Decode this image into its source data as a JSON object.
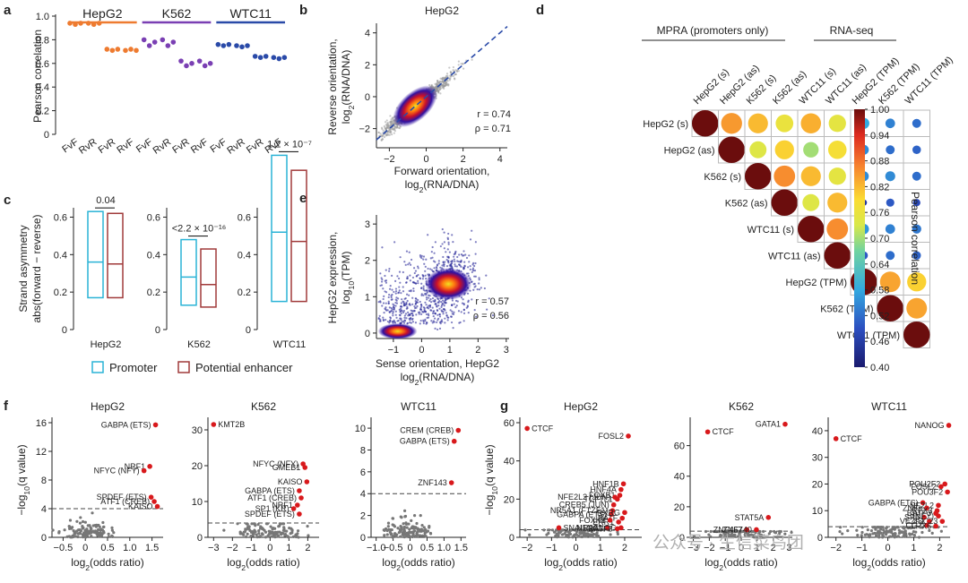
{
  "chart_data": [
    {
      "panel": "a",
      "type": "scatter",
      "ylabel": "Pearson correlation",
      "ylim": [
        0,
        1.0
      ],
      "yticks": [
        "0",
        "0.2",
        "0.4",
        "0.6",
        "0.8",
        "1.0"
      ],
      "xticks": [
        "FvF",
        "RvR",
        "FvR",
        "RvF",
        "FvF",
        "RvR",
        "FvR",
        "RvF",
        "FvF",
        "RvR",
        "FvR",
        "RvF"
      ],
      "groups": [
        {
          "name": "HepG2",
          "color": "#ee7b30",
          "values": [
            [
              0.94,
              0.93,
              0.94
            ],
            [
              0.94,
              0.93,
              0.94
            ],
            [
              0.72,
              0.71,
              0.72
            ],
            [
              0.71,
              0.72,
              0.71
            ]
          ]
        },
        {
          "name": "K562",
          "color": "#7a3fb3",
          "values": [
            [
              0.8,
              0.75,
              0.78
            ],
            [
              0.8,
              0.75,
              0.78
            ],
            [
              0.62,
              0.58,
              0.6
            ],
            [
              0.62,
              0.58,
              0.6
            ]
          ]
        },
        {
          "name": "WTC11",
          "color": "#2a4aa8",
          "values": [
            [
              0.76,
              0.75,
              0.76
            ],
            [
              0.75,
              0.74,
              0.75
            ],
            [
              0.66,
              0.65,
              0.66
            ],
            [
              0.65,
              0.64,
              0.65
            ]
          ]
        }
      ]
    },
    {
      "panel": "b",
      "type": "scatter",
      "title": "HepG2",
      "xlabel": [
        "Forward orientation,",
        "log2(RNA/DNA)"
      ],
      "ylabel": [
        "Reverse orientation,",
        "log2(RNA/DNA)"
      ],
      "xticks": [
        "−2",
        "0",
        "2",
        "4"
      ],
      "yticks": [
        "−2",
        "0",
        "2",
        "4"
      ],
      "stats": [
        "r = 0.74",
        "ρ = 0.71"
      ]
    },
    {
      "panel": "c",
      "type": "bar",
      "ylabel": [
        "Strand asymmetry",
        "abs(forward − reverse)"
      ],
      "yticks": [
        "0",
        "0.2",
        "0.4",
        "0.6"
      ],
      "legend": [
        "Promoter",
        "Potential enhancer"
      ],
      "colors": {
        "promoter": "#2ab3d6",
        "enhancer": "#a03a3a"
      },
      "groups": [
        {
          "name": "HepG2",
          "pval": "0.04",
          "promoter": [
            0.17,
            0.36,
            0.63
          ],
          "enhancer": [
            0.17,
            0.35,
            0.62
          ]
        },
        {
          "name": "K562",
          "pval": "<2.2 × 10⁻¹⁶",
          "promoter": [
            0.13,
            0.28,
            0.48
          ],
          "enhancer": [
            0.12,
            0.24,
            0.43
          ]
        },
        {
          "name": "WTC11",
          "pval": "1.2 × 10⁻⁷",
          "promoter": [
            0.15,
            0.52,
            0.93
          ],
          "enhancer": [
            0.15,
            0.47,
            0.85
          ]
        }
      ]
    },
    {
      "panel": "d",
      "type": "heatmap",
      "header_mpra": "MPRA (promoters only)",
      "header_rna": "RNA-seq",
      "labels": [
        "HepG2 (s)",
        "HepG2 (as)",
        "K562 (s)",
        "K562 (as)",
        "WTC11 (s)",
        "WTC11 (as)",
        "HepG2 (TPM)",
        "K562 (TPM)",
        "WTC11 (TPM)"
      ],
      "colorbar_label": "Pearson correlation",
      "colorbar_ticks": [
        "1.00",
        "0.94",
        "0.88",
        "0.82",
        "0.76",
        "0.70",
        "0.64",
        "0.58",
        "0.52",
        "0.46",
        "0.40"
      ],
      "matrix": [
        [
          1.0,
          0.85,
          0.82,
          0.76,
          0.83,
          0.75,
          0.58,
          0.54,
          0.52
        ],
        [
          null,
          1.0,
          0.74,
          0.8,
          0.7,
          0.78,
          0.55,
          0.52,
          0.51
        ],
        [
          null,
          null,
          1.0,
          0.86,
          0.82,
          0.75,
          0.55,
          0.55,
          0.52
        ],
        [
          null,
          null,
          null,
          1.0,
          0.74,
          0.82,
          0.45,
          0.5,
          0.48
        ],
        [
          null,
          null,
          null,
          null,
          1.0,
          0.86,
          0.56,
          0.54,
          0.53
        ],
        [
          null,
          null,
          null,
          null,
          null,
          1.0,
          0.5,
          0.52,
          0.51
        ],
        [
          null,
          null,
          null,
          null,
          null,
          null,
          1.0,
          0.84,
          0.8
        ],
        [
          null,
          null,
          null,
          null,
          null,
          null,
          null,
          1.0,
          0.84
        ],
        [
          null,
          null,
          null,
          null,
          null,
          null,
          null,
          null,
          1.0
        ]
      ]
    },
    {
      "panel": "e",
      "type": "scatter",
      "xlabel": [
        "Sense orientation, HepG2",
        "log2(RNA/DNA)"
      ],
      "ylabel": [
        "HepG2 expression,",
        "log10(TPM)"
      ],
      "xticks": [
        "−1",
        "0",
        "1",
        "2",
        "3"
      ],
      "yticks": [
        "0",
        "1",
        "2",
        "3"
      ],
      "stats": [
        "r = 0.57",
        "ρ = 0.56"
      ]
    },
    {
      "panel": "f",
      "type": "scatter",
      "ylabel": "−log10(q value)",
      "xlabel": "log2(odds ratio)",
      "plots": [
        {
          "title": "HepG2",
          "yticks": [
            "0",
            "4",
            "8",
            "12",
            "16"
          ],
          "ymax": 16,
          "xticks": [
            "−0.5",
            "0",
            "0.5",
            "1.0",
            "1.5"
          ],
          "xmin": -0.75,
          "xmax": 1.75,
          "threshold": 4,
          "labels": [
            {
              "text": "GABPA (ETS)",
              "x": 1.58,
              "y": 15.7
            },
            {
              "text": "NRF1",
              "x": 1.45,
              "y": 9.9
            },
            {
              "text": "NFYC (NFY)",
              "x": 1.32,
              "y": 9.3
            },
            {
              "text": "SPDEF (ETS)",
              "x": 1.48,
              "y": 5.6
            },
            {
              "text": "ATF1 (CREB)",
              "x": 1.55,
              "y": 5.0
            },
            {
              "text": "KAISO",
              "x": 1.62,
              "y": 4.3
            }
          ]
        },
        {
          "title": "K562",
          "yticks": [
            "0",
            "10",
            "20",
            "30"
          ],
          "ymax": 32,
          "xticks": [
            "−3",
            "−2",
            "−1",
            "0",
            "1",
            "2"
          ],
          "xmin": -3.3,
          "xmax": 2.6,
          "threshold": 4,
          "labels": [
            {
              "text": "KMT2B",
              "x": -3.0,
              "y": 31.5
            },
            {
              "text": "NFYC (NFY)",
              "x": 1.75,
              "y": 20.5
            },
            {
              "text": "GMEB1",
              "x": 1.85,
              "y": 19.5
            },
            {
              "text": "KAISO",
              "x": 1.95,
              "y": 15.5
            },
            {
              "text": "GABPA (ETS)",
              "x": 1.55,
              "y": 13
            },
            {
              "text": "ATF1 (CREB)",
              "x": 1.65,
              "y": 11
            },
            {
              "text": "NRF1",
              "x": 1.45,
              "y": 9
            },
            {
              "text": "SP1 (KR)",
              "x": 1.25,
              "y": 8
            },
            {
              "text": "SPDEF (ETS)",
              "x": 1.55,
              "y": 6.5
            }
          ]
        },
        {
          "title": "WTC11",
          "yticks": [
            "0",
            "2",
            "4",
            "6",
            "8",
            "10"
          ],
          "ymax": 10.5,
          "xticks": [
            "−1.0",
            "−0.5",
            "0",
            "0.5",
            "1.0",
            "1.5"
          ],
          "xmin": -1.15,
          "xmax": 1.65,
          "threshold": 4,
          "labels": [
            {
              "text": "CREM (CREB)",
              "x": 1.42,
              "y": 9.8
            },
            {
              "text": "GABPA (ETS)",
              "x": 1.3,
              "y": 8.8
            },
            {
              "text": "ZNF143",
              "x": 1.22,
              "y": 5.0
            }
          ]
        }
      ]
    },
    {
      "panel": "g",
      "type": "scatter",
      "ylabel": "−log10(q value)",
      "xlabel": "log2(odds ratio)",
      "plots": [
        {
          "title": "HepG2",
          "yticks": [
            "0",
            "20",
            "40",
            "60"
          ],
          "ymax": 60,
          "xticks": [
            "−2",
            "−1",
            "0",
            "1",
            "2"
          ],
          "xmin": -2.3,
          "xmax": 2.7,
          "threshold": 4,
          "labels": [
            {
              "text": "CTCF",
              "x": -2.0,
              "y": 57
            },
            {
              "text": "FOSL2",
              "x": 2.15,
              "y": 53
            },
            {
              "text": "HNF1B",
              "x": 1.95,
              "y": 28
            },
            {
              "text": "HNF4A",
              "x": 1.85,
              "y": 25
            },
            {
              "text": "FOXB1",
              "x": 1.8,
              "y": 22
            },
            {
              "text": "NFE2L2 (JUN)",
              "x": 1.6,
              "y": 21
            },
            {
              "text": "TCF7L1",
              "x": 1.7,
              "y": 20
            },
            {
              "text": "CREB5 (JUN)",
              "x": 1.55,
              "y": 17
            },
            {
              "text": "NR5A1 (FTZF1)",
              "x": 1.5,
              "y": 14
            },
            {
              "text": "GABPA (ETS)",
              "x": 1.45,
              "y": 12
            },
            {
              "text": "RXRG",
              "x": 2.0,
              "y": 13
            },
            {
              "text": "BATF",
              "x": 1.9,
              "y": 10
            },
            {
              "text": "ERR1",
              "x": 1.75,
              "y": 8
            },
            {
              "text": "FOXK1",
              "x": 1.4,
              "y": 9
            },
            {
              "text": "SNAI1",
              "x": -0.7,
              "y": 5
            },
            {
              "text": "NR2C1",
              "x": 1.3,
              "y": 5
            },
            {
              "text": "NANOG",
              "x": 1.85,
              "y": 5
            },
            {
              "text": "BATF3",
              "x": 1.7,
              "y": 4.5
            }
          ]
        },
        {
          "title": "K562",
          "yticks": [
            "0",
            "20",
            "40",
            "60"
          ],
          "ymax": 75,
          "xticks": [
            "−3",
            "−2",
            "−1",
            "0",
            "1",
            "2",
            "3"
          ],
          "xmin": -3.2,
          "xmax": 3.2,
          "threshold": 4,
          "labels": [
            {
              "text": "GATA1",
              "x": 2.75,
              "y": 74
            },
            {
              "text": "CTCF",
              "x": -2.1,
              "y": 69
            },
            {
              "text": "STAT5A",
              "x": 1.7,
              "y": 13
            },
            {
              "text": "ZNF467",
              "x": 0.35,
              "y": 5
            },
            {
              "text": "ZNF740",
              "x": 0.95,
              "y": 5
            }
          ]
        },
        {
          "title": "WTC11",
          "yticks": [
            "0",
            "10",
            "20",
            "30",
            "40"
          ],
          "ymax": 43,
          "xticks": [
            "−2",
            "−1",
            "0",
            "1",
            "2"
          ],
          "xmin": -2.3,
          "xmax": 2.4,
          "threshold": 4,
          "labels": [
            {
              "text": "NANOG",
              "x": 2.35,
              "y": 42
            },
            {
              "text": "CTCF",
              "x": -2.0,
              "y": 37
            },
            {
              "text": "POU2F2",
              "x": 2.2,
              "y": 20
            },
            {
              "text": "FOSL2",
              "x": 2.05,
              "y": 19
            },
            {
              "text": "POU3F2",
              "x": 2.3,
              "y": 17
            },
            {
              "text": "GABPA (ETS)",
              "x": 1.35,
              "y": 13
            },
            {
              "text": "NF2L2",
              "x": 1.95,
              "y": 12
            },
            {
              "text": "ZNFs",
              "x": 1.5,
              "y": 11
            },
            {
              "text": "RFX3",
              "x": 1.9,
              "y": 10
            },
            {
              "text": "BATF3",
              "x": 1.85,
              "y": 9
            },
            {
              "text": "SP5",
              "x": 1.4,
              "y": 7.5
            },
            {
              "text": "(NFY)",
              "x": 1.95,
              "y": 8
            },
            {
              "text": "VEZF1",
              "x": 1.6,
              "y": 6
            },
            {
              "text": "ZSC23",
              "x": 2.1,
              "y": 6
            },
            {
              "text": "CG2",
              "x": 1.5,
              "y": 4.5
            },
            {
              "text": "LHX6",
              "x": 1.85,
              "y": 4.2
            }
          ]
        }
      ]
    }
  ],
  "watermark": "公众号 · 生信菜鸟团"
}
